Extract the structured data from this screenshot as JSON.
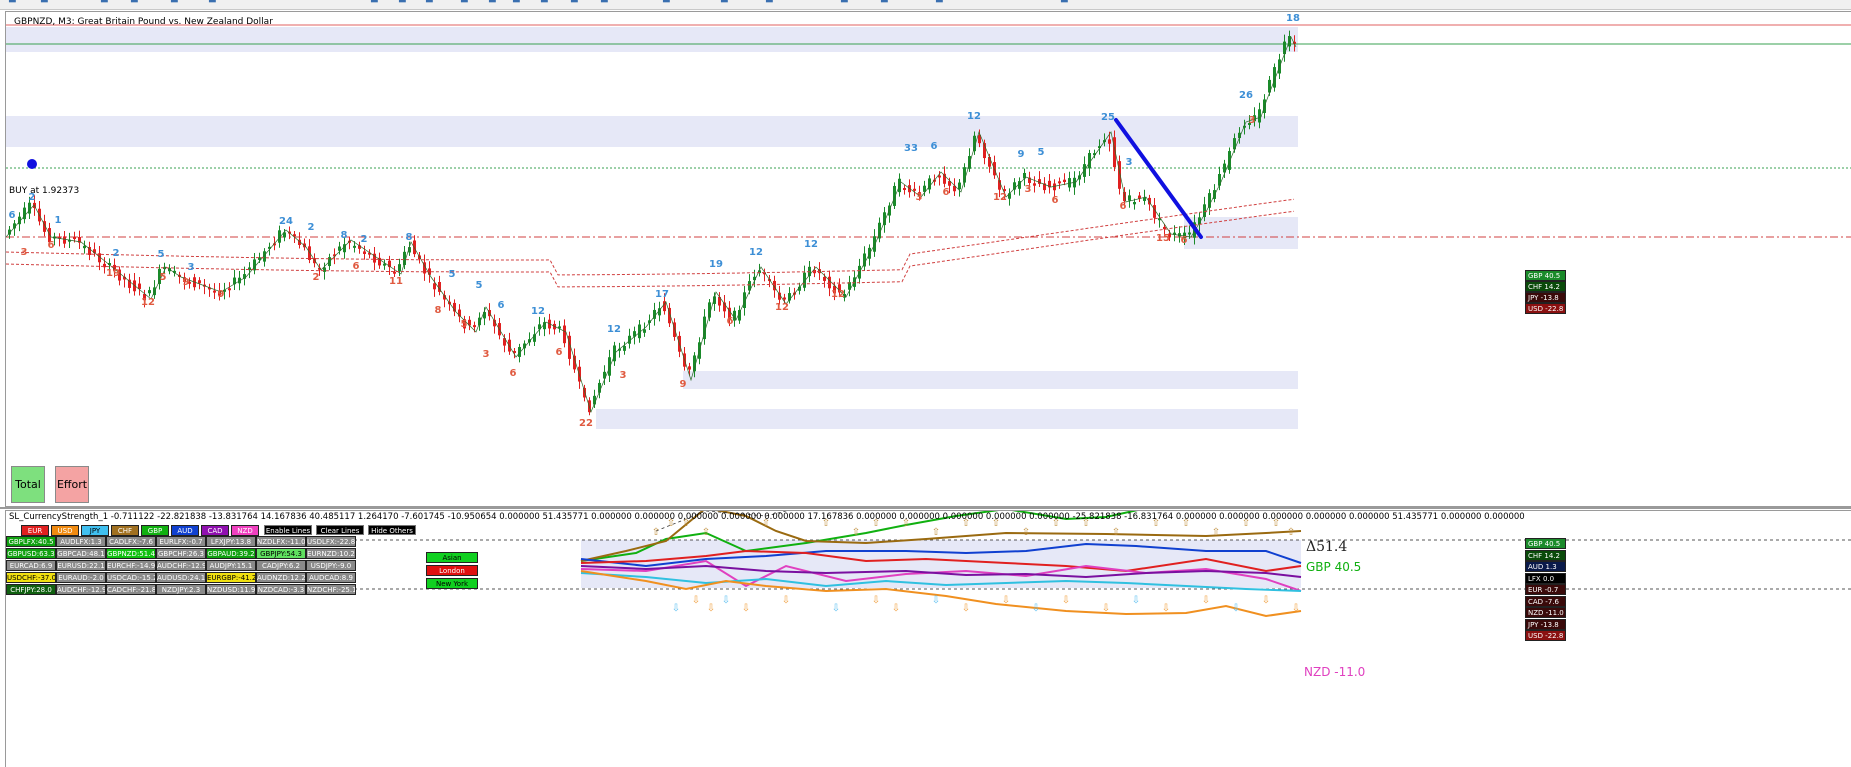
{
  "window": {
    "chart_title": "GBPNZD, M3:  Great Britain Pound vs. New Zealand Dollar",
    "buy_label": "BUY at 1.92373",
    "buttons": {
      "total": "Total",
      "effort": "Effort"
    }
  },
  "colors": {
    "bull_candle": "#1a8a2a",
    "bear_candle": "#e02020",
    "zone_fill": "#e6e8f7",
    "wave_up_label": "#3d8fd6",
    "wave_down_label": "#e05a40",
    "trend_line": "#1010e0",
    "ma_line": "#d04040"
  },
  "main_chart": {
    "price_marker": "18",
    "wave_labels_up": [
      "6",
      "2",
      "1",
      "2",
      "5",
      "3",
      "24",
      "2",
      "8",
      "2",
      "8",
      "5",
      "5",
      "6",
      "12",
      "12",
      "17",
      "19",
      "12",
      "12",
      "33",
      "6",
      "12",
      "9",
      "5",
      "25",
      "3",
      "26"
    ],
    "wave_labels_down": [
      "3",
      "6",
      "19",
      "12",
      "9",
      "9",
      "5",
      "2",
      "6",
      "11",
      "8",
      "5",
      "3",
      "6",
      "6",
      "3",
      "22",
      "9",
      "6",
      "12",
      "12",
      "3",
      "6",
      "12",
      "3",
      "6",
      "6",
      "15",
      "6",
      "3"
    ],
    "strength_legend": [
      {
        "label": "GBP  40.5",
        "bg": "#1a8a2a"
      },
      {
        "label": "CHF  14.2",
        "bg": "#0a4a0a"
      },
      {
        "label": "JPY  -13.8",
        "bg": "#3a0a0a"
      },
      {
        "label": "USD  -22.8",
        "bg": "#8a1010"
      }
    ]
  },
  "indicator": {
    "title": "SL_CurrencyStrength_1 -0.711122 -22.821838 -13.831764 14.167836 40.485117 1.264170 -7.601745 -10.950654 0.000000 51.435771 0.000000 0.000000 0.000000 0.000000 0.000000 17.167836 0.000000 0.000000 0.000000 0.000000 0.000000 -25.821838 -16.831764 0.000000 0.000000 0.000000 0.000000 0.000000 51.435771 0.000000 0.000000",
    "currencies": [
      {
        "code": "EUR",
        "bg": "#e02020",
        "fg": "#fff"
      },
      {
        "code": "USD",
        "bg": "#f08a10",
        "fg": "#fff"
      },
      {
        "code": "JPY",
        "bg": "#40c0f0",
        "fg": "#000"
      },
      {
        "code": "CHF",
        "bg": "#a07020",
        "fg": "#fff"
      },
      {
        "code": "GBP",
        "bg": "#10b010",
        "fg": "#fff"
      },
      {
        "code": "AUD",
        "bg": "#1040d0",
        "fg": "#fff"
      },
      {
        "code": "CAD",
        "bg": "#9010b0",
        "fg": "#fff"
      },
      {
        "code": "NZD",
        "bg": "#f040c0",
        "fg": "#fff"
      }
    ],
    "controls": {
      "enable": "Enable Lines",
      "clear": "Clear Lines",
      "hide": "Hide Others"
    },
    "sessions": [
      {
        "label": "Asian",
        "bg": "#10d020",
        "fg": "#000"
      },
      {
        "label": "London",
        "bg": "#e01010",
        "fg": "#fff"
      },
      {
        "label": "New York",
        "bg": "#10d020",
        "fg": "#000"
      }
    ],
    "pair_grid": [
      [
        {
          "t": "GBPLFX:40.5",
          "bg": "#10a010"
        },
        {
          "t": "AUDLFX:1.3",
          "bg": "#8a8a8a"
        },
        {
          "t": "CADLFX:-7.6",
          "bg": "#8a8a8a"
        },
        {
          "t": "EURLFX:-0.7",
          "bg": "#8a8a8a"
        },
        {
          "t": "LFXJPY:13.8",
          "bg": "#8a8a8a"
        },
        {
          "t": "NZDLFX:-11.0",
          "bg": "#8a8a8a"
        },
        {
          "t": "USDLFX:-22.8",
          "bg": "#8a8a8a"
        }
      ],
      [
        {
          "t": "GBPUSD:63.3",
          "bg": "#10a010"
        },
        {
          "t": "GBPCAD:48.1",
          "bg": "#8a8a8a"
        },
        {
          "t": "GBPNZD:51.4",
          "bg": "#10c010"
        },
        {
          "t": "GBPCHF:26.3",
          "bg": "#8a8a8a"
        },
        {
          "t": "GBPAUD:39.2",
          "bg": "#10a010"
        },
        {
          "t": "GBPJPY:54.3",
          "bg": "#60e060"
        },
        {
          "t": "EURNZD:10.2",
          "bg": "#8a8a8a"
        }
      ],
      [
        {
          "t": "EURCAD:6.9",
          "bg": "#8a8a8a"
        },
        {
          "t": "EURUSD:22.1",
          "bg": "#8a8a8a"
        },
        {
          "t": "EURCHF:-14.9",
          "bg": "#8a8a8a"
        },
        {
          "t": "AUDCHF:-12.9",
          "bg": "#8a8a8a"
        },
        {
          "t": "AUDJPY:15.1",
          "bg": "#8a8a8a"
        },
        {
          "t": "CADJPY:6.2",
          "bg": "#8a8a8a"
        },
        {
          "t": "USDJPY:-9.0",
          "bg": "#8a8a8a"
        }
      ],
      [
        {
          "t": "USDCHF:-37.0",
          "bg": "#f0e010"
        },
        {
          "t": "EURAUD:-2.0",
          "bg": "#8a8a8a"
        },
        {
          "t": "USDCAD:-15.2",
          "bg": "#8a8a8a"
        },
        {
          "t": "AUDUSD:24.1",
          "bg": "#8a8a8a"
        },
        {
          "t": "EURGBP:-41.2",
          "bg": "#f0e010"
        },
        {
          "t": "AUDNZD:12.2",
          "bg": "#8a8a8a"
        },
        {
          "t": "AUDCAD:8.9",
          "bg": "#8a8a8a"
        }
      ],
      [
        {
          "t": "CHFJPY:28.0",
          "bg": "#106010"
        },
        {
          "t": "AUDCHF:-12.9",
          "bg": "#8a8a8a"
        },
        {
          "t": "CADCHF:-21.8",
          "bg": "#8a8a8a"
        },
        {
          "t": "NZDJPY:2.3",
          "bg": "#8a8a8a"
        },
        {
          "t": "NZDUSD:11.9",
          "bg": "#8a8a8a"
        },
        {
          "t": "NZDCAD:-3.3",
          "bg": "#8a8a8a"
        },
        {
          "t": "NZDCHF:-25.1",
          "bg": "#8a8a8a"
        }
      ]
    ],
    "delta_label": "Δ51.4",
    "gbp_label": "GBP 40.5",
    "nzd_label": "NZD -11.0",
    "legend": [
      {
        "label": "GBP  40.5",
        "bg": "#1a8a2a"
      },
      {
        "label": "CHF  14.2",
        "bg": "#0a4a0a"
      },
      {
        "label": "AUD  1.3",
        "bg": "#0a1a4a"
      },
      {
        "label": "LFX  0.0",
        "bg": "#000"
      },
      {
        "label": "EUR  -0.7",
        "bg": "#3a0a0a"
      },
      {
        "label": "CAD  -7.6",
        "bg": "#3a0a0a"
      },
      {
        "label": "NZD  -11.0",
        "bg": "#3a0a0a"
      },
      {
        "label": "JPY  -13.8",
        "bg": "#3a0a0a"
      },
      {
        "label": "USD  -22.8",
        "bg": "#8a1010"
      }
    ]
  }
}
